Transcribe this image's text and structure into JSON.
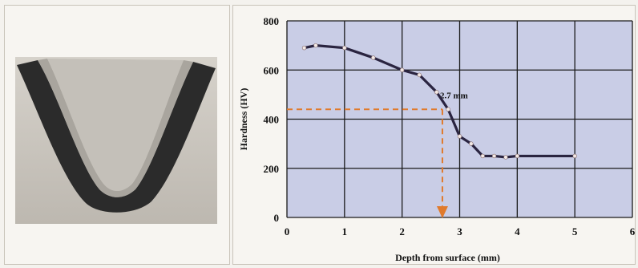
{
  "chart_data": {
    "type": "line",
    "xlabel": "Depth from surface (mm)",
    "ylabel": "Hardness (HV)",
    "xlim": [
      0,
      6
    ],
    "ylim": [
      0,
      800
    ],
    "xticks": [
      0,
      1,
      2,
      3,
      4,
      5,
      6
    ],
    "yticks": [
      0,
      200,
      400,
      600,
      800
    ],
    "grid": true,
    "series": [
      {
        "x": [
          0.3,
          0.5,
          1.0,
          1.5,
          2.0,
          2.3,
          2.6,
          2.8,
          3.0,
          3.2,
          3.4,
          3.6,
          3.8,
          4.0,
          5.0
        ],
        "y": [
          690,
          700,
          690,
          650,
          600,
          580,
          510,
          440,
          330,
          300,
          250,
          250,
          245,
          250,
          250
        ]
      }
    ],
    "annotations": [
      {
        "text": "2.7 mm",
        "x": 2.7,
        "y": 440
      }
    ],
    "colors": {
      "plot_background": "#c9cde6",
      "grid": "#1a1a1a",
      "line": "#2a2440",
      "marker": "#f2e9e6",
      "annotation": "#e07a2c"
    }
  }
}
